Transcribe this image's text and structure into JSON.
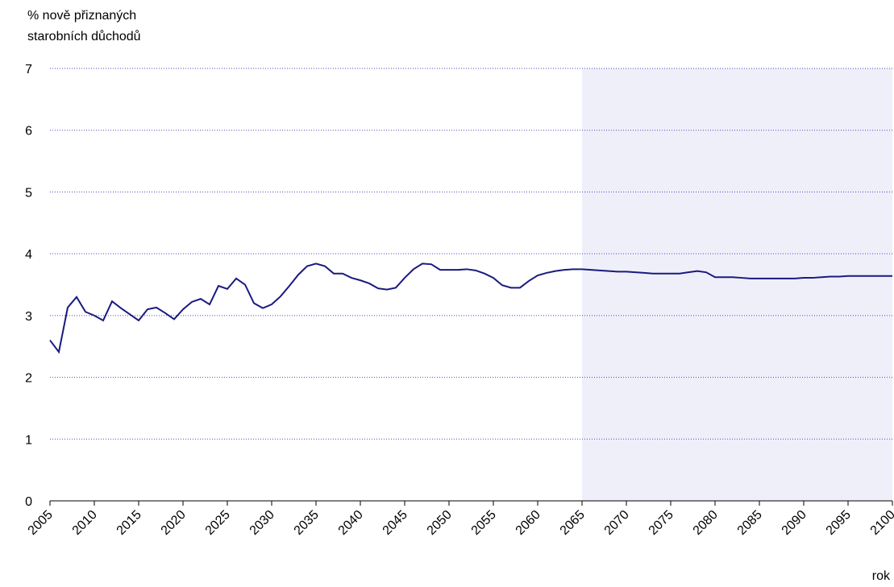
{
  "chart_data": {
    "type": "line",
    "y_label": [
      "% nově přiznaných",
      "starobních důchodů"
    ],
    "x_label": "rok",
    "x": [
      2005,
      2006,
      2007,
      2008,
      2009,
      2010,
      2011,
      2012,
      2013,
      2014,
      2015,
      2016,
      2017,
      2018,
      2019,
      2020,
      2021,
      2022,
      2023,
      2024,
      2025,
      2026,
      2027,
      2028,
      2029,
      2030,
      2031,
      2032,
      2033,
      2034,
      2035,
      2036,
      2037,
      2038,
      2039,
      2040,
      2041,
      2042,
      2043,
      2044,
      2045,
      2046,
      2047,
      2048,
      2049,
      2050,
      2051,
      2052,
      2053,
      2054,
      2055,
      2056,
      2057,
      2058,
      2059,
      2060,
      2061,
      2062,
      2063,
      2064,
      2065,
      2066,
      2067,
      2068,
      2069,
      2070,
      2071,
      2072,
      2073,
      2074,
      2075,
      2076,
      2077,
      2078,
      2079,
      2080,
      2081,
      2082,
      2083,
      2084,
      2085,
      2086,
      2087,
      2088,
      2089,
      2090,
      2091,
      2092,
      2093,
      2094,
      2095,
      2096,
      2097,
      2098,
      2099,
      2100
    ],
    "series": [
      {
        "color": "#1a1a80",
        "values": [
          2.6,
          2.41,
          3.13,
          3.3,
          3.06,
          3.0,
          2.92,
          3.23,
          3.12,
          3.02,
          2.92,
          3.1,
          3.13,
          3.04,
          2.94,
          3.1,
          3.22,
          3.27,
          3.18,
          3.48,
          3.43,
          3.6,
          3.5,
          3.2,
          3.12,
          3.18,
          3.31,
          3.48,
          3.66,
          3.8,
          3.84,
          3.8,
          3.68,
          3.68,
          3.61,
          3.57,
          3.52,
          3.44,
          3.42,
          3.45,
          3.61,
          3.75,
          3.84,
          3.83,
          3.74,
          3.74,
          3.74,
          3.75,
          3.73,
          3.68,
          3.61,
          3.49,
          3.45,
          3.45,
          3.56,
          3.65,
          3.69,
          3.72,
          3.74,
          3.75,
          3.75,
          3.74,
          3.73,
          3.72,
          3.71,
          3.71,
          3.7,
          3.69,
          3.68,
          3.68,
          3.68,
          3.68,
          3.7,
          3.72,
          3.7,
          3.62,
          3.62,
          3.62,
          3.61,
          3.6,
          3.6,
          3.6,
          3.6,
          3.6,
          3.6,
          3.61,
          3.61,
          3.62,
          3.63,
          3.63,
          3.64,
          3.64,
          3.64,
          3.64,
          3.64,
          3.64
        ]
      }
    ],
    "shaded_xrange": [
      2065,
      2100
    ],
    "shade_color": "#efeffa",
    "xlim": [
      2005,
      2100
    ],
    "xticks": [
      2005,
      2010,
      2015,
      2020,
      2025,
      2030,
      2035,
      2040,
      2045,
      2050,
      2055,
      2060,
      2065,
      2070,
      2075,
      2080,
      2085,
      2090,
      2095,
      2100
    ],
    "ylim": [
      0,
      7
    ],
    "yticks": [
      0,
      1,
      2,
      3,
      4,
      5,
      6,
      7
    ],
    "grid": true,
    "grid_color": "#4a4ac0"
  }
}
